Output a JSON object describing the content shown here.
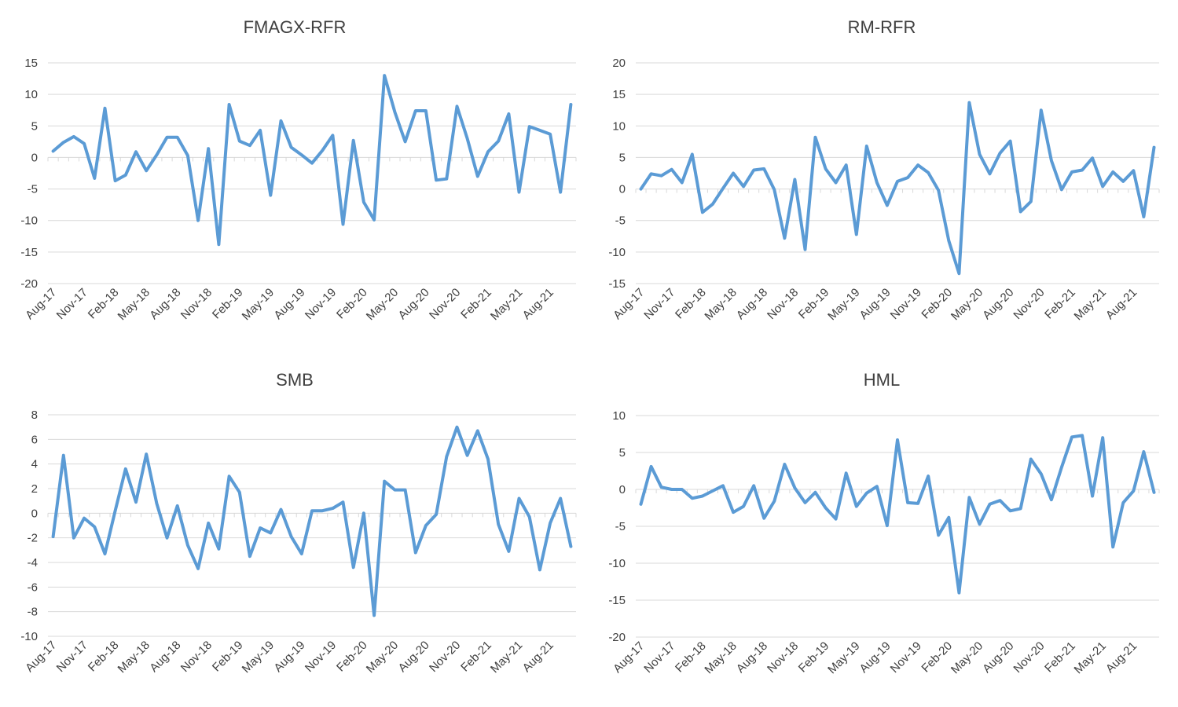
{
  "series_color": "#5b9bd5",
  "chart_data": [
    {
      "type": "line",
      "title": "FMAGX-RFR",
      "xlabel": "",
      "ylabel": "",
      "ylim": [
        -20,
        15
      ],
      "yticks": [
        15,
        10,
        5,
        0,
        -5,
        -10,
        -15,
        -20
      ],
      "ytick_labels": [
        "15",
        "10",
        "5",
        "0",
        "-5",
        "-10",
        "-15",
        "-20"
      ],
      "xtick_labels": [
        "Aug-17",
        "Nov-17",
        "Feb-18",
        "May-18",
        "Aug-18",
        "Nov-18",
        "Feb-19",
        "May-19",
        "Aug-19",
        "Nov-19",
        "Feb-20",
        "May-20",
        "Aug-20",
        "Nov-20",
        "Feb-21",
        "May-21",
        "Aug-21"
      ],
      "values": [
        1.0,
        2.4,
        3.3,
        2.2,
        -3.3,
        7.8,
        -3.7,
        -2.8,
        0.9,
        -2.1,
        0.4,
        3.2,
        3.2,
        0.3,
        -10.0,
        1.4,
        -13.8,
        8.4,
        2.6,
        1.9,
        4.3,
        -6.0,
        5.8,
        1.6,
        0.4,
        -0.9,
        1.1,
        3.5,
        -10.6,
        2.7,
        -7.1,
        -9.9,
        13.0,
        7.2,
        2.5,
        7.4,
        7.4,
        -3.6,
        -3.4,
        8.1,
        3.0,
        -3.0,
        0.9,
        2.6,
        6.9,
        -5.5,
        4.9,
        4.3,
        3.7,
        -5.5,
        8.4
      ]
    },
    {
      "type": "line",
      "title": "RM-RFR",
      "xlabel": "",
      "ylabel": "",
      "ylim": [
        -15,
        20
      ],
      "yticks": [
        20,
        15,
        10,
        5,
        0,
        -5,
        -10,
        -15
      ],
      "ytick_labels": [
        "20",
        "15",
        "10",
        "5",
        "0",
        "-5",
        "-10",
        "-15"
      ],
      "xtick_labels": [
        "Aug-17",
        "Nov-17",
        "Feb-18",
        "May-18",
        "Aug-18",
        "Nov-18",
        "Feb-19",
        "May-19",
        "Aug-19",
        "Nov-19",
        "Feb-20",
        "May-20",
        "Aug-20",
        "Nov-20",
        "Feb-21",
        "May-21",
        "Aug-21"
      ],
      "values": [
        0.0,
        2.4,
        2.1,
        3.1,
        1.0,
        5.5,
        -3.7,
        -2.4,
        0.1,
        2.5,
        0.4,
        3.0,
        3.2,
        -0.1,
        -7.8,
        1.5,
        -9.6,
        8.2,
        3.2,
        1.0,
        3.8,
        -7.2,
        6.8,
        1.0,
        -2.6,
        1.2,
        1.8,
        3.8,
        2.6,
        -0.2,
        -8.2,
        -13.4,
        13.7,
        5.5,
        2.4,
        5.7,
        7.6,
        -3.6,
        -2.0,
        12.5,
        4.5,
        -0.1,
        2.7,
        3.0,
        4.9,
        0.4,
        2.7,
        1.2,
        2.9,
        -4.4,
        6.6
      ]
    },
    {
      "type": "line",
      "title": "SMB",
      "xlabel": "",
      "ylabel": "",
      "ylim": [
        -10,
        8
      ],
      "yticks": [
        8,
        6,
        4,
        2,
        0,
        -2,
        -4,
        -6,
        -8,
        -10
      ],
      "ytick_labels": [
        "8",
        "6",
        "4",
        "2",
        "0",
        "-2",
        "-4",
        "-6",
        "-8",
        "-10"
      ],
      "xtick_labels": [
        "Aug-17",
        "Nov-17",
        "Feb-18",
        "May-18",
        "Aug-18",
        "Nov-18",
        "Feb-19",
        "May-19",
        "Aug-19",
        "Nov-19",
        "Feb-20",
        "May-20",
        "Aug-20",
        "Nov-20",
        "Feb-21",
        "May-21",
        "Aug-21"
      ],
      "values": [
        -1.9,
        4.7,
        -2.0,
        -0.4,
        -1.1,
        -3.3,
        0.2,
        3.6,
        0.9,
        4.8,
        0.8,
        -2.0,
        0.6,
        -2.6,
        -4.5,
        -0.8,
        -2.9,
        3.0,
        1.7,
        -3.5,
        -1.2,
        -1.6,
        0.3,
        -1.9,
        -3.3,
        0.2,
        0.2,
        0.4,
        0.9,
        -4.4,
        0.0,
        -8.3,
        2.6,
        1.9,
        1.9,
        -3.2,
        -1.0,
        -0.1,
        4.6,
        7.0,
        4.7,
        6.7,
        4.4,
        -0.9,
        -3.1,
        1.2,
        -0.3,
        -4.6,
        -0.8,
        1.2,
        -2.7
      ]
    },
    {
      "type": "line",
      "title": "HML",
      "xlabel": "",
      "ylabel": "",
      "ylim": [
        -20,
        10
      ],
      "yticks": [
        10,
        5,
        0,
        -5,
        -10,
        -15,
        -20
      ],
      "ytick_labels": [
        "10",
        "5",
        "0",
        "-5",
        "-10",
        "-15",
        "-20"
      ],
      "xtick_labels": [
        "Aug-17",
        "Nov-17",
        "Feb-18",
        "May-18",
        "Aug-18",
        "Nov-18",
        "Feb-19",
        "May-19",
        "Aug-19",
        "Nov-19",
        "Feb-20",
        "May-20",
        "Aug-20",
        "Nov-20",
        "Feb-21",
        "May-21",
        "Aug-21"
      ],
      "values": [
        -2.0,
        3.1,
        0.3,
        0.0,
        0.0,
        -1.2,
        -0.9,
        -0.2,
        0.5,
        -3.1,
        -2.3,
        0.5,
        -3.9,
        -1.6,
        3.4,
        0.2,
        -1.8,
        -0.4,
        -2.5,
        -4.0,
        2.2,
        -2.3,
        -0.5,
        0.4,
        -4.9,
        6.7,
        -1.8,
        -1.9,
        1.8,
        -6.2,
        -3.8,
        -14.0,
        -1.1,
        -4.7,
        -2.0,
        -1.5,
        -2.9,
        -2.6,
        4.1,
        2.1,
        -1.4,
        3.0,
        7.1,
        7.3,
        -0.9,
        7.0,
        -7.8,
        -1.8,
        -0.2,
        5.1,
        -0.4
      ]
    }
  ]
}
